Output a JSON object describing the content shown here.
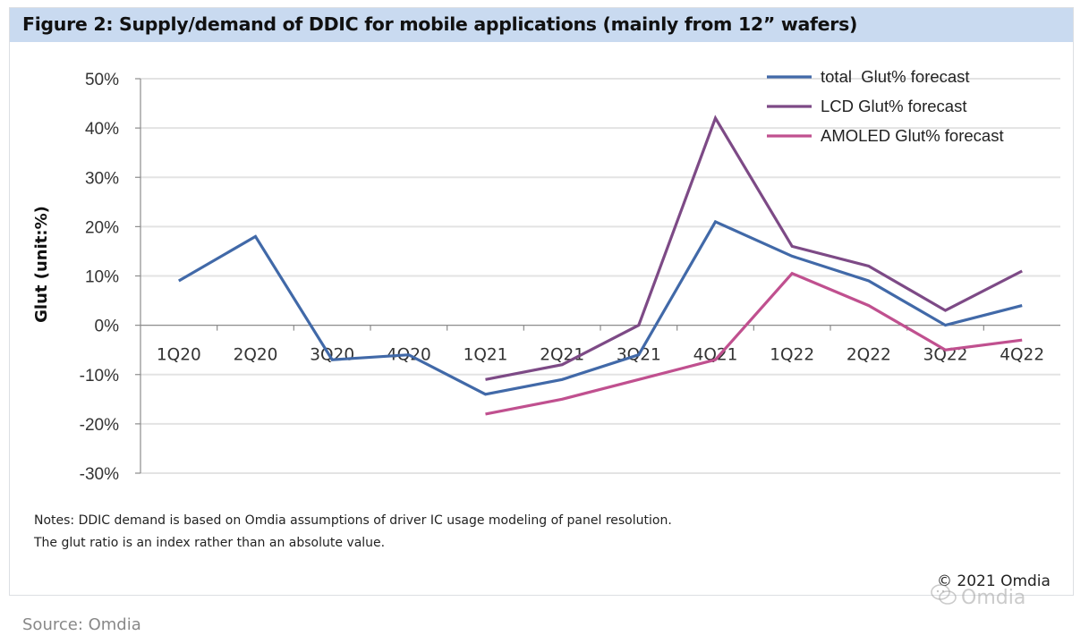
{
  "figure": {
    "title": "Figure 2: Supply/demand of DDIC for mobile applications (mainly from 12” wafers)",
    "notes": [
      "Notes: DDIC demand is based on Omdia assumptions of driver IC usage modeling of panel resolution.",
      "The glut ratio is an index rather than an absolute value."
    ],
    "copyright": "© 2021 Omdia",
    "watermark": "Omdia",
    "watermark_icon": "wechat-icon",
    "source": "Source: Omdia"
  },
  "chart_data": {
    "type": "line",
    "title": "Figure 2: Supply/demand of DDIC for mobile applications (mainly from 12” wafers)",
    "xlabel": "",
    "ylabel": "Glut (unit:%)",
    "ylim": [
      -30,
      50
    ],
    "yticks": [
      50,
      40,
      30,
      20,
      10,
      0,
      -10,
      -20,
      -30
    ],
    "ytick_labels": [
      "50%",
      "40%",
      "30%",
      "20%",
      "10%",
      "0%",
      "-10%",
      "-20%",
      "-30%"
    ],
    "grid": true,
    "legend_position": "top-right",
    "categories": [
      "1Q20",
      "2Q20",
      "3Q20",
      "4Q20",
      "1Q21",
      "2Q21",
      "3Q21",
      "4Q21",
      "1Q22",
      "2Q22",
      "3Q22",
      "4Q22"
    ],
    "series": [
      {
        "name": "total  Glut% forecast",
        "color": "#4169a8",
        "values": [
          9,
          18,
          -7,
          -6,
          -14,
          -11,
          -6,
          21,
          14,
          9,
          0,
          4
        ]
      },
      {
        "name": "LCD Glut% forecast",
        "color": "#7d4a86",
        "values": [
          null,
          null,
          null,
          null,
          -11,
          -8,
          0,
          42,
          16,
          12,
          3,
          11
        ]
      },
      {
        "name": "AMOLED Glut% forecast",
        "color": "#c0508f",
        "values": [
          null,
          null,
          null,
          null,
          -18,
          -15,
          -11,
          -7,
          10.5,
          4,
          -5,
          -3
        ]
      }
    ]
  }
}
